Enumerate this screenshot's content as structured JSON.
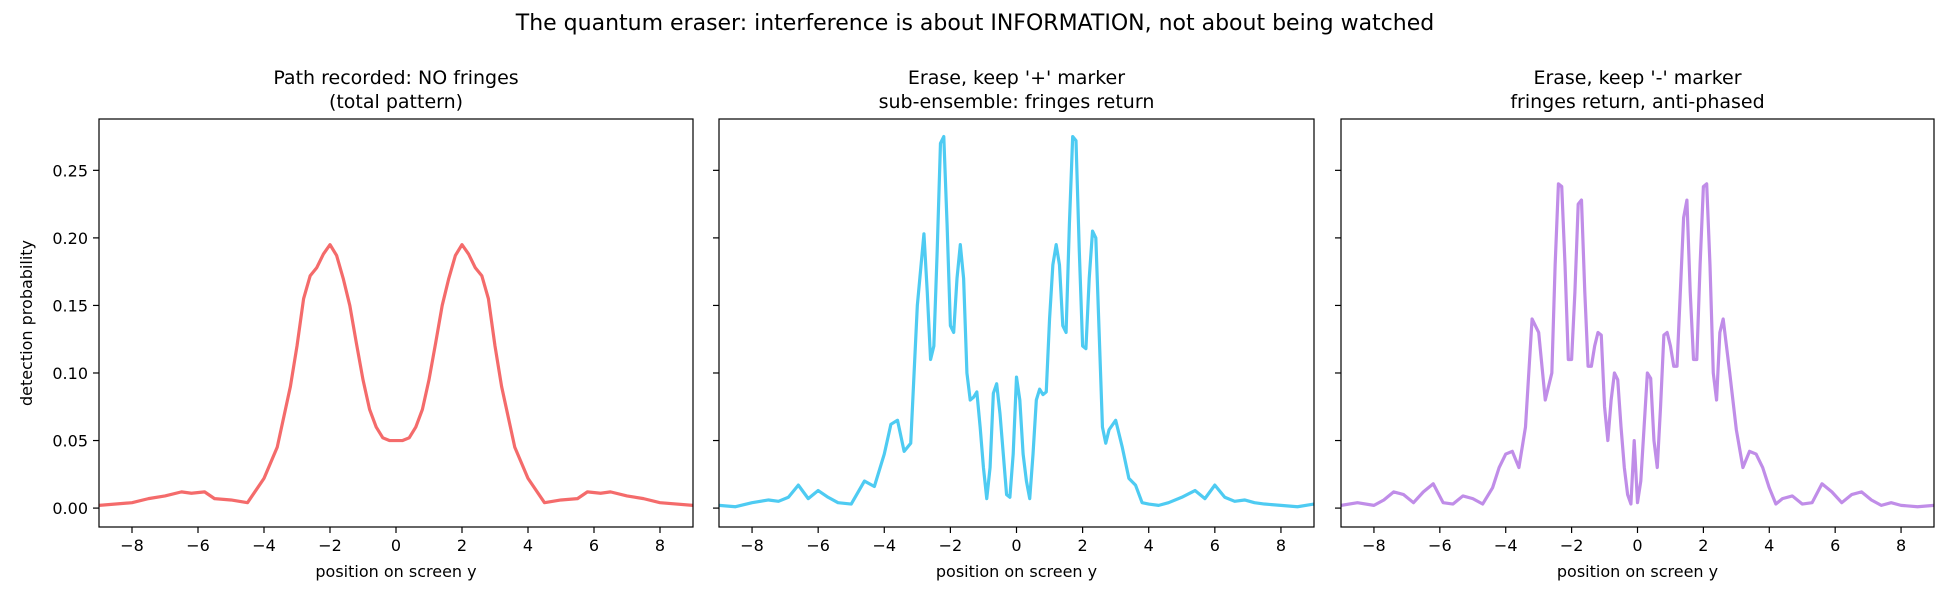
{
  "figure": {
    "suptitle": "The quantum eraser: interference is about INFORMATION, not about being watched"
  },
  "chart_data": [
    {
      "type": "line",
      "title_line1": "Path recorded: NO fringes",
      "title_line2": "(total pattern)",
      "xlabel": "position on screen  y",
      "ylabel": "detection probability",
      "xlim": [
        -9,
        9
      ],
      "ylim": [
        -0.014,
        0.288
      ],
      "xticks": [
        -8,
        -6,
        -4,
        -2,
        0,
        2,
        4,
        6,
        8
      ],
      "yticks": [
        0.0,
        0.05,
        0.1,
        0.15,
        0.2,
        0.25
      ],
      "color": "#f46b6b",
      "x": [
        -9.0,
        -8.0,
        -7.5,
        -7.0,
        -6.5,
        -6.2,
        -5.8,
        -5.5,
        -5.0,
        -4.5,
        -4.0,
        -3.6,
        -3.2,
        -3.0,
        -2.8,
        -2.6,
        -2.4,
        -2.2,
        -2.0,
        -1.8,
        -1.6,
        -1.4,
        -1.2,
        -1.0,
        -0.8,
        -0.6,
        -0.4,
        -0.2,
        0.0,
        0.2,
        0.4,
        0.6,
        0.8,
        1.0,
        1.2,
        1.4,
        1.6,
        1.8,
        2.0,
        2.2,
        2.4,
        2.6,
        2.8,
        3.0,
        3.2,
        3.6,
        4.0,
        4.5,
        5.0,
        5.5,
        5.8,
        6.2,
        6.5,
        7.0,
        7.5,
        8.0,
        9.0
      ],
      "y": [
        0.002,
        0.004,
        0.007,
        0.009,
        0.012,
        0.011,
        0.012,
        0.007,
        0.006,
        0.004,
        0.022,
        0.045,
        0.09,
        0.12,
        0.155,
        0.172,
        0.178,
        0.188,
        0.195,
        0.187,
        0.17,
        0.15,
        0.122,
        0.095,
        0.073,
        0.06,
        0.052,
        0.05,
        0.05,
        0.05,
        0.052,
        0.06,
        0.073,
        0.095,
        0.122,
        0.15,
        0.17,
        0.187,
        0.195,
        0.188,
        0.178,
        0.172,
        0.155,
        0.12,
        0.09,
        0.045,
        0.022,
        0.004,
        0.006,
        0.007,
        0.012,
        0.011,
        0.012,
        0.009,
        0.007,
        0.004,
        0.002
      ]
    },
    {
      "type": "line",
      "title_line1": "Erase, keep '+' marker",
      "title_line2": "sub-ensemble: fringes return",
      "xlabel": "position on screen  y",
      "ylabel": "",
      "xlim": [
        -9,
        9
      ],
      "ylim": [
        -0.014,
        0.288
      ],
      "xticks": [
        -8,
        -6,
        -4,
        -2,
        0,
        2,
        4,
        6,
        8
      ],
      "yticks": [
        0.0,
        0.05,
        0.1,
        0.15,
        0.2,
        0.25
      ],
      "color": "#4ecbf2",
      "x": [
        -9.0,
        -8.5,
        -8.0,
        -7.5,
        -7.2,
        -6.9,
        -6.6,
        -6.3,
        -6.0,
        -5.7,
        -5.4,
        -5.0,
        -4.6,
        -4.3,
        -4.0,
        -3.8,
        -3.6,
        -3.4,
        -3.2,
        -3.0,
        -2.8,
        -2.7,
        -2.6,
        -2.5,
        -2.4,
        -2.3,
        -2.2,
        -2.1,
        -2.0,
        -1.9,
        -1.8,
        -1.7,
        -1.6,
        -1.5,
        -1.4,
        -1.3,
        -1.2,
        -1.1,
        -1.0,
        -0.9,
        -0.8,
        -0.7,
        -0.6,
        -0.5,
        -0.4,
        -0.3,
        -0.2,
        -0.1,
        0.0,
        0.1,
        0.2,
        0.3,
        0.4,
        0.5,
        0.6,
        0.7,
        0.8,
        0.9,
        1.0,
        1.1,
        1.2,
        1.3,
        1.4,
        1.5,
        1.6,
        1.7,
        1.8,
        1.9,
        2.0,
        2.1,
        2.2,
        2.3,
        2.4,
        2.5,
        2.6,
        2.7,
        2.8,
        3.0,
        3.2,
        3.4,
        3.6,
        3.8,
        4.0,
        4.3,
        4.6,
        5.0,
        5.4,
        5.7,
        6.0,
        6.3,
        6.6,
        6.9,
        7.2,
        7.5,
        8.0,
        8.5,
        9.0
      ],
      "y": [
        0.002,
        0.001,
        0.004,
        0.006,
        0.005,
        0.008,
        0.017,
        0.007,
        0.013,
        0.008,
        0.004,
        0.003,
        0.02,
        0.016,
        0.04,
        0.062,
        0.065,
        0.042,
        0.048,
        0.15,
        0.203,
        0.16,
        0.11,
        0.12,
        0.19,
        0.27,
        0.275,
        0.21,
        0.135,
        0.13,
        0.17,
        0.195,
        0.17,
        0.1,
        0.08,
        0.082,
        0.086,
        0.06,
        0.03,
        0.007,
        0.03,
        0.085,
        0.092,
        0.07,
        0.04,
        0.01,
        0.008,
        0.04,
        0.097,
        0.08,
        0.04,
        0.02,
        0.007,
        0.04,
        0.08,
        0.088,
        0.084,
        0.086,
        0.14,
        0.18,
        0.195,
        0.18,
        0.135,
        0.13,
        0.21,
        0.275,
        0.272,
        0.19,
        0.12,
        0.118,
        0.17,
        0.205,
        0.2,
        0.13,
        0.06,
        0.048,
        0.058,
        0.065,
        0.045,
        0.022,
        0.017,
        0.004,
        0.003,
        0.002,
        0.004,
        0.008,
        0.013,
        0.007,
        0.017,
        0.008,
        0.005,
        0.006,
        0.004,
        0.003,
        0.002,
        0.001,
        0.003
      ]
    },
    {
      "type": "line",
      "title_line1": "Erase, keep '-' marker",
      "title_line2": "fringes return, anti-phased",
      "xlabel": "position on screen  y",
      "ylabel": "",
      "xlim": [
        -9,
        9
      ],
      "ylim": [
        -0.014,
        0.288
      ],
      "xticks": [
        -8,
        -6,
        -4,
        -2,
        0,
        2,
        4,
        6,
        8
      ],
      "yticks": [
        0.0,
        0.05,
        0.1,
        0.15,
        0.2,
        0.25
      ],
      "color": "#c08de8",
      "x": [
        -9.0,
        -8.5,
        -8.0,
        -7.7,
        -7.4,
        -7.1,
        -6.8,
        -6.5,
        -6.2,
        -5.9,
        -5.6,
        -5.3,
        -5.0,
        -4.7,
        -4.4,
        -4.2,
        -4.0,
        -3.8,
        -3.6,
        -3.4,
        -3.2,
        -3.0,
        -2.8,
        -2.6,
        -2.5,
        -2.4,
        -2.3,
        -2.2,
        -2.1,
        -2.0,
        -1.9,
        -1.8,
        -1.7,
        -1.6,
        -1.5,
        -1.4,
        -1.3,
        -1.2,
        -1.1,
        -1.0,
        -0.9,
        -0.8,
        -0.7,
        -0.6,
        -0.5,
        -0.4,
        -0.3,
        -0.2,
        -0.1,
        0.0,
        0.1,
        0.2,
        0.3,
        0.4,
        0.5,
        0.6,
        0.7,
        0.8,
        0.9,
        1.0,
        1.1,
        1.2,
        1.3,
        1.4,
        1.5,
        1.6,
        1.7,
        1.8,
        1.9,
        2.0,
        2.1,
        2.2,
        2.3,
        2.4,
        2.5,
        2.6,
        2.8,
        3.0,
        3.2,
        3.4,
        3.6,
        3.8,
        4.0,
        4.2,
        4.4,
        4.7,
        5.0,
        5.3,
        5.6,
        5.9,
        6.2,
        6.5,
        6.8,
        7.1,
        7.4,
        7.7,
        8.0,
        8.5,
        9.0
      ],
      "y": [
        0.002,
        0.004,
        0.002,
        0.006,
        0.012,
        0.01,
        0.004,
        0.012,
        0.018,
        0.004,
        0.003,
        0.009,
        0.007,
        0.003,
        0.015,
        0.03,
        0.04,
        0.042,
        0.03,
        0.06,
        0.14,
        0.13,
        0.08,
        0.1,
        0.18,
        0.24,
        0.238,
        0.18,
        0.11,
        0.11,
        0.16,
        0.225,
        0.228,
        0.16,
        0.105,
        0.105,
        0.12,
        0.13,
        0.128,
        0.075,
        0.05,
        0.08,
        0.1,
        0.095,
        0.06,
        0.03,
        0.01,
        0.003,
        0.05,
        0.004,
        0.02,
        0.06,
        0.1,
        0.096,
        0.05,
        0.03,
        0.075,
        0.128,
        0.13,
        0.12,
        0.105,
        0.105,
        0.16,
        0.215,
        0.228,
        0.16,
        0.11,
        0.11,
        0.18,
        0.238,
        0.24,
        0.18,
        0.1,
        0.08,
        0.13,
        0.14,
        0.1,
        0.058,
        0.03,
        0.042,
        0.04,
        0.03,
        0.015,
        0.003,
        0.007,
        0.009,
        0.003,
        0.004,
        0.018,
        0.012,
        0.004,
        0.01,
        0.012,
        0.006,
        0.002,
        0.004,
        0.002,
        0.001,
        0.002
      ]
    }
  ]
}
